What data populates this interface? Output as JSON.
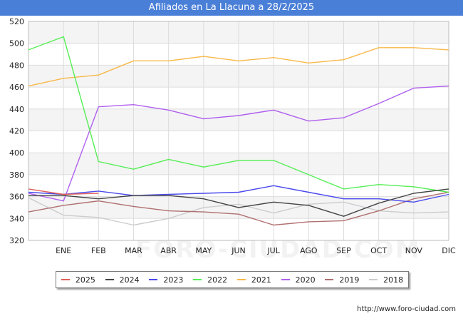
{
  "header": {
    "title": "Afiliados en La Llacuna a 28/2/2025"
  },
  "watermark": "FORO-CIUDAD.COM",
  "credit": "http://www.foro-ciudad.com",
  "chart_data": {
    "type": "line",
    "title": "Afiliados en La Llacuna a 28/2/2025",
    "xlabel": "",
    "ylabel": "",
    "categories": [
      "",
      "ENE",
      "FEB",
      "MAR",
      "ABR",
      "MAY",
      "JUN",
      "JUL",
      "AGO",
      "SEP",
      "OCT",
      "NOV",
      "DIC"
    ],
    "ylim": [
      320,
      520
    ],
    "yticks": [
      320,
      340,
      360,
      380,
      400,
      420,
      440,
      460,
      480,
      500,
      520
    ],
    "grid": true,
    "legend_position": "bottom",
    "series": [
      {
        "name": "2025",
        "color": "#e0605a",
        "values": [
          367,
          362,
          363,
          null,
          null,
          null,
          null,
          null,
          null,
          null,
          null,
          null,
          null
        ]
      },
      {
        "name": "2024",
        "color": "#444444",
        "values": [
          361,
          361,
          358,
          361,
          361,
          358,
          350,
          355,
          352,
          342,
          354,
          363,
          367
        ]
      },
      {
        "name": "2023",
        "color": "#4a4aee",
        "values": [
          364,
          362,
          365,
          361,
          362,
          363,
          364,
          370,
          364,
          358,
          358,
          355,
          362
        ]
      },
      {
        "name": "2022",
        "color": "#55ee55",
        "values": [
          494,
          506,
          392,
          385,
          394,
          387,
          393,
          393,
          380,
          367,
          371,
          369,
          364
        ]
      },
      {
        "name": "2021",
        "color": "#f8b84a",
        "values": [
          461,
          468,
          471,
          484,
          484,
          488,
          484,
          487,
          482,
          485,
          496,
          496,
          494
        ]
      },
      {
        "name": "2020",
        "color": "#b060ee",
        "values": [
          363,
          356,
          442,
          444,
          439,
          431,
          434,
          439,
          429,
          432,
          445,
          459,
          461
        ]
      },
      {
        "name": "2019",
        "color": "#b07070",
        "values": [
          346,
          352,
          356,
          351,
          347,
          346,
          344,
          334,
          337,
          338,
          347,
          358,
          364
        ]
      },
      {
        "name": "2018",
        "color": "#cccccc",
        "values": [
          359,
          343,
          341,
          334,
          340,
          350,
          353,
          345,
          353,
          355,
          347,
          345,
          346
        ]
      }
    ]
  }
}
